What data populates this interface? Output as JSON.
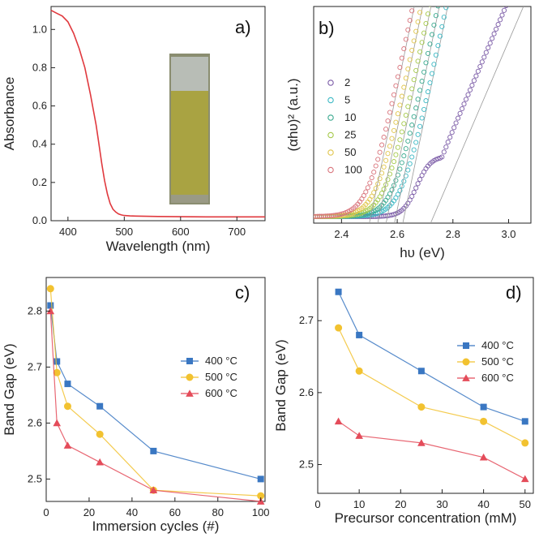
{
  "chart_data": [
    {
      "panel": "a)",
      "type": "line",
      "xlabel": "Wavelength (nm)",
      "ylabel": "Absorbance",
      "xlim": [
        370,
        750
      ],
      "ylim": [
        0,
        1.12
      ],
      "xticks": [
        400,
        500,
        600,
        700
      ],
      "yticks": [
        0.0,
        0.2,
        0.4,
        0.6,
        0.8,
        1.0
      ],
      "series": [
        {
          "name": "absorbance",
          "color": "#e0393e",
          "x": [
            370,
            380,
            390,
            400,
            410,
            420,
            430,
            440,
            450,
            455,
            460,
            465,
            470,
            475,
            480,
            485,
            490,
            495,
            500,
            510,
            520,
            540,
            560,
            600,
            650,
            700,
            750
          ],
          "y": [
            1.1,
            1.085,
            1.07,
            1.04,
            0.98,
            0.9,
            0.8,
            0.66,
            0.5,
            0.4,
            0.3,
            0.21,
            0.14,
            0.09,
            0.06,
            0.045,
            0.035,
            0.03,
            0.027,
            0.025,
            0.024,
            0.023,
            0.022,
            0.021,
            0.02,
            0.02,
            0.02
          ]
        }
      ],
      "inset": "photo of yellow film on substrate"
    },
    {
      "panel": "b)",
      "type": "scatter",
      "xlabel": "hυ (eV)",
      "ylabel": "(αhυ)² (a.u.)",
      "xlim": [
        2.3,
        3.08
      ],
      "xticks": [
        2.4,
        2.6,
        2.8,
        3.0
      ],
      "legend": [
        "2",
        "5",
        "10",
        "25",
        "50",
        "100"
      ],
      "series": [
        {
          "name": "2",
          "color": "#7a5aa6",
          "onset": 2.72
        },
        {
          "name": "5",
          "color": "#3bb8c4",
          "onset": 2.62
        },
        {
          "name": "10",
          "color": "#3aa98f",
          "onset": 2.59
        },
        {
          "name": "25",
          "color": "#a5c94a",
          "onset": 2.56
        },
        {
          "name": "50",
          "color": "#e0c54c",
          "onset": 2.53
        },
        {
          "name": "100",
          "color": "#d9747c",
          "onset": 2.5
        }
      ]
    },
    {
      "panel": "c)",
      "type": "line",
      "xlabel": "Immersion cycles (#)",
      "ylabel": "Band Gap (eV)",
      "xlim": [
        0,
        102
      ],
      "ylim": [
        2.46,
        2.86
      ],
      "xticks": [
        0,
        20,
        40,
        60,
        80,
        100
      ],
      "yticks": [
        2.5,
        2.6,
        2.7,
        2.8
      ],
      "legend_position": "right",
      "series": [
        {
          "name": "400 °C",
          "color": "#3a77c2",
          "marker": "square",
          "x": [
            2,
            5,
            10,
            25,
            50,
            100
          ],
          "y": [
            2.81,
            2.71,
            2.67,
            2.63,
            2.55,
            2.5
          ]
        },
        {
          "name": "500 °C",
          "color": "#f2c230",
          "marker": "circle",
          "x": [
            2,
            5,
            10,
            25,
            50,
            100
          ],
          "y": [
            2.84,
            2.69,
            2.63,
            2.58,
            2.48,
            2.47
          ]
        },
        {
          "name": "600 °C",
          "color": "#e44c5a",
          "marker": "triangle",
          "x": [
            2,
            5,
            10,
            25,
            50,
            100
          ],
          "y": [
            2.8,
            2.6,
            2.56,
            2.53,
            2.48,
            2.46
          ]
        }
      ]
    },
    {
      "panel": "d)",
      "type": "line",
      "xlabel": "Precursor concentration (mM)",
      "ylabel": "Band Gap (eV)",
      "xlim": [
        0,
        52
      ],
      "ylim": [
        2.46,
        2.76
      ],
      "xticks": [
        0,
        10,
        20,
        30,
        40,
        50
      ],
      "yticks": [
        2.5,
        2.6,
        2.7
      ],
      "legend_position": "top-right",
      "series": [
        {
          "name": "400 °C",
          "color": "#3a77c2",
          "marker": "square",
          "x": [
            5,
            10,
            25,
            40,
            50
          ],
          "y": [
            2.74,
            2.68,
            2.63,
            2.58,
            2.56
          ]
        },
        {
          "name": "500 °C",
          "color": "#f2c230",
          "marker": "circle",
          "x": [
            5,
            10,
            25,
            40,
            50
          ],
          "y": [
            2.69,
            2.63,
            2.58,
            2.56,
            2.53
          ]
        },
        {
          "name": "600 °C",
          "color": "#e44c5a",
          "marker": "triangle",
          "x": [
            5,
            10,
            25,
            40,
            50
          ],
          "y": [
            2.56,
            2.54,
            2.53,
            2.51,
            2.48
          ]
        }
      ]
    }
  ]
}
